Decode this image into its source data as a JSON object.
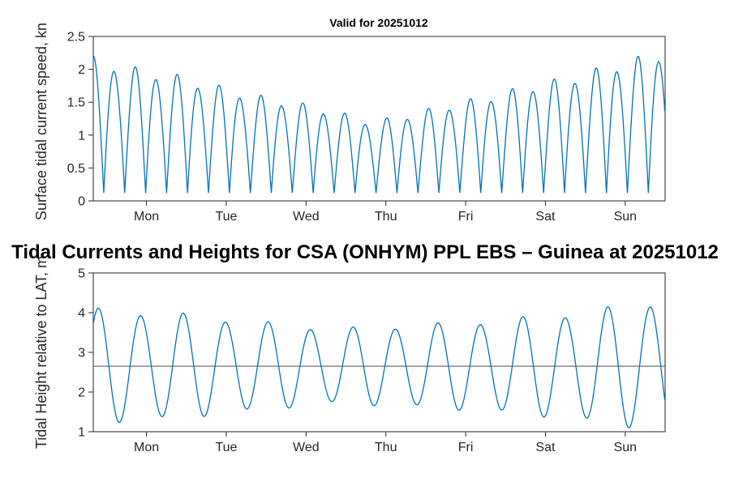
{
  "figure_title": "Tidal Currents and Heights for CSA (ONHYM) PPL EBS  – Guinea at 20251012",
  "colors": {
    "line": "#0072BD",
    "axis": "#262626",
    "reference_line": "#4d4d4d",
    "background": "#ffffff"
  },
  "chart_data": [
    {
      "type": "line",
      "title": "Valid for 20251012",
      "xlabel": "",
      "ylabel": "Surface tidal current speed, kn",
      "ylim": [
        0,
        2.5
      ],
      "yticks": [
        0,
        0.5,
        1,
        1.5,
        2,
        2.5
      ],
      "ytick_labels": [
        "0",
        "0.5",
        "1",
        "1.5",
        "2",
        "2.5"
      ],
      "x_span_hours": 172,
      "xtick_hours": [
        16,
        40,
        64,
        88,
        112,
        136,
        160
      ],
      "xtick_labels": [
        "Mon",
        "Tue",
        "Wed",
        "Thu",
        "Fri",
        "Sat",
        "Sun"
      ],
      "grid": false,
      "legend": null,
      "line_color": "#0072BD",
      "axis_color": "#262626",
      "series_model": {
        "kind": "rectified_sine",
        "period_h": 12.6,
        "phase_h": -3.15,
        "base": 0.12,
        "alternation": {
          "amp": 0.05,
          "period_h": 12.6,
          "phase": 0.9
        },
        "envelope_points": [
          [
            0,
            2.0
          ],
          [
            12,
            1.85
          ],
          [
            24,
            1.75
          ],
          [
            36,
            1.6
          ],
          [
            48,
            1.45
          ],
          [
            60,
            1.35
          ],
          [
            72,
            1.22
          ],
          [
            84,
            1.05
          ],
          [
            96,
            1.18
          ],
          [
            108,
            1.32
          ],
          [
            120,
            1.45
          ],
          [
            132,
            1.6
          ],
          [
            144,
            1.72
          ],
          [
            156,
            1.9
          ],
          [
            172,
            2.1
          ]
        ]
      },
      "approx_peak_values_kn": [
        2.2,
        1.95,
        2.1,
        1.8,
        1.78,
        1.62,
        1.65,
        1.5,
        1.6,
        1.45,
        1.42,
        1.35,
        1.35,
        1.2,
        1.22,
        1.28,
        1.3,
        1.35,
        1.45,
        1.5,
        1.55,
        1.65,
        1.8,
        1.85,
        1.9,
        2.05,
        2.15,
        2.3
      ],
      "approx_trough_value_kn": 0.15
    },
    {
      "type": "line",
      "title": "",
      "xlabel": "",
      "ylabel": "Tidal Height relative to LAT, m",
      "ylim": [
        1,
        5
      ],
      "yticks": [
        1,
        2,
        3,
        4,
        5
      ],
      "ytick_labels": [
        "1",
        "2",
        "3",
        "4",
        "5"
      ],
      "x_span_hours": 172,
      "xtick_hours": [
        16,
        40,
        64,
        88,
        112,
        136,
        160
      ],
      "xtick_labels": [
        "Mon",
        "Tue",
        "Wed",
        "Thu",
        "Fri",
        "Sat",
        "Sun"
      ],
      "grid": false,
      "legend": null,
      "line_color": "#0072BD",
      "axis_color": "#262626",
      "reference_line": {
        "value": 2.65,
        "color": "#4d4d4d"
      },
      "series_model": {
        "kind": "sine",
        "period_h": 12.77,
        "phase_h": -1.69,
        "mean": 2.65,
        "alternation": {
          "amp": 0.06,
          "period_h": 25.54,
          "phase": 0.6
        },
        "envelope_points": [
          [
            0,
            1.4
          ],
          [
            24,
            1.3
          ],
          [
            48,
            1.1
          ],
          [
            72,
            0.92
          ],
          [
            96,
            1.0
          ],
          [
            120,
            1.12
          ],
          [
            144,
            1.3
          ],
          [
            172,
            1.62
          ]
        ]
      },
      "approx_peak_values_m": [
        4.05,
        4.1,
        3.8,
        3.65,
        3.5,
        3.45,
        3.6,
        3.8,
        3.6,
        3.95,
        3.85,
        4.15,
        4.1,
        4.3
      ],
      "approx_trough_values_m": [
        1.15,
        1.2,
        1.45,
        1.6,
        1.75,
        1.8,
        1.7,
        1.5,
        1.45,
        1.3,
        1.1,
        1.05,
        1.0
      ]
    }
  ]
}
